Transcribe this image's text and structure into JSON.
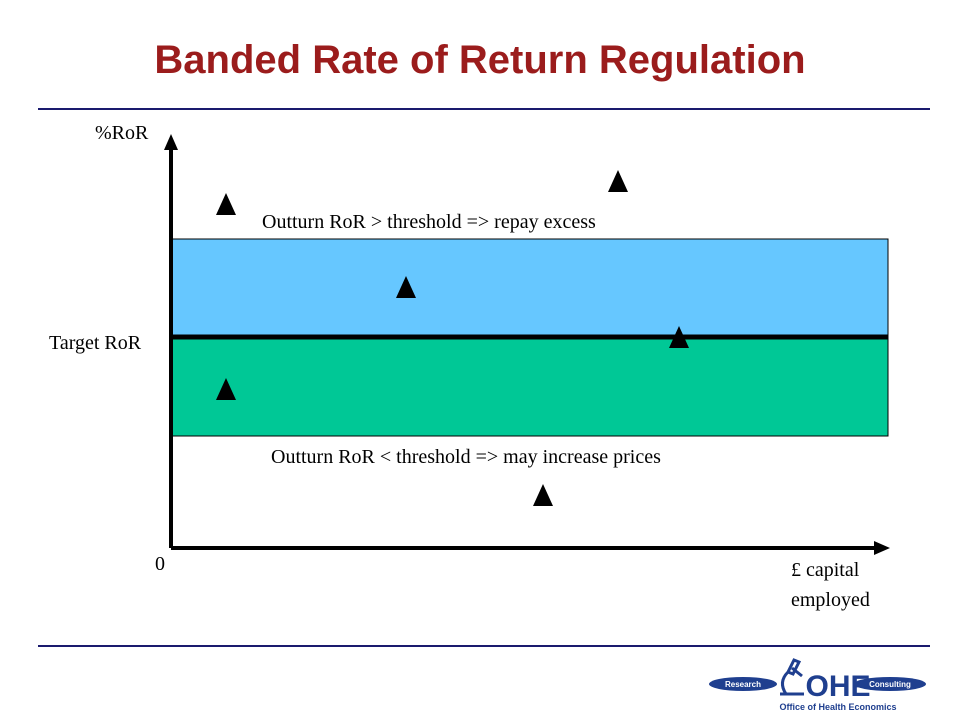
{
  "title": "Banded Rate of Return Regulation",
  "axes": {
    "y_label": "%RoR",
    "x_label_line1": "£ capital",
    "x_label_line2": "employed",
    "origin": "0",
    "target_label": "Target RoR"
  },
  "annotations": {
    "upper": "Outturn RoR > threshold => repay excess",
    "lower": "Outturn RoR < threshold => may increase prices"
  },
  "logo": {
    "text": "OHE",
    "left_tag": "Research",
    "right_tag": "Consulting",
    "subtitle": "Office of Health Economics"
  },
  "colors": {
    "title": "#9b1c1c",
    "upper_band": "#66c7ff",
    "lower_band": "#00c896",
    "rule": "#1a1a6e",
    "logo": "#1f3f8f"
  },
  "points_icon": "triangle-marker-icon"
}
